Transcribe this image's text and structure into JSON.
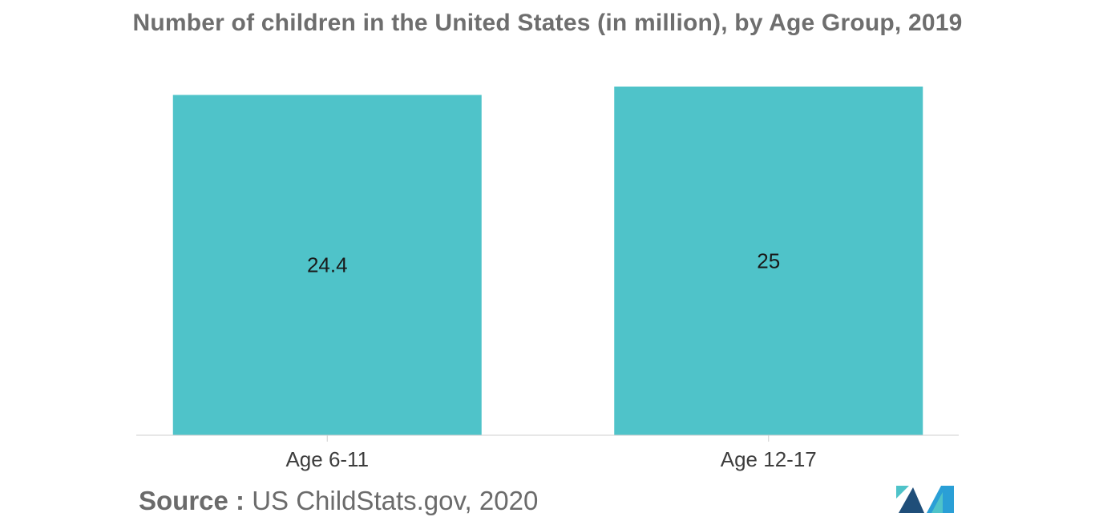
{
  "chart_data": {
    "type": "bar",
    "title": "Number of children in the United States (in million), by Age Group, 2019",
    "categories": [
      "Age 6-11",
      "Age 12-17"
    ],
    "values": [
      24.4,
      25
    ],
    "data_labels": [
      "24.4",
      "25"
    ],
    "xlabel": "",
    "ylabel": "",
    "ylim": [
      0,
      25
    ],
    "grid": false,
    "legend": "none",
    "bar_color": "#4fc3c9"
  },
  "source": {
    "prefix": "Source :",
    "text": "US ChildStats.gov, 2020"
  },
  "logo": {
    "icon": "mordor-intelligence-logo",
    "colors": [
      "#1f4e79",
      "#2a9fd6",
      "#4fc3c9"
    ]
  }
}
